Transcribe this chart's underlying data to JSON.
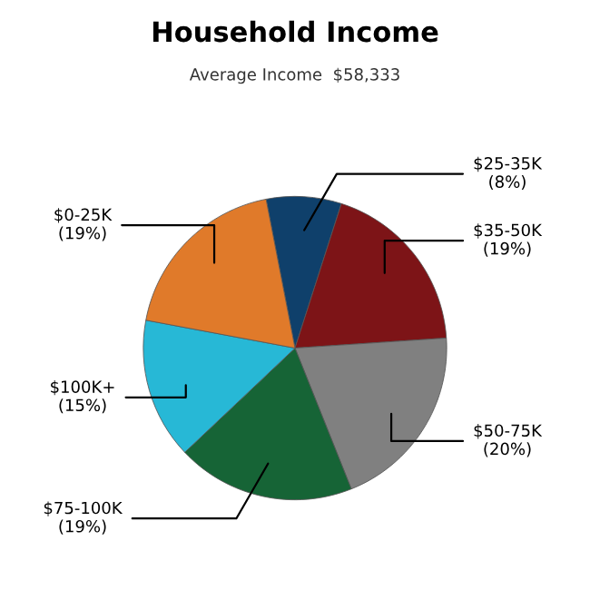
{
  "chart_data": {
    "type": "pie",
    "title": "Household Income",
    "subtitle": "Average Income  $58,333",
    "categories": [
      "$25-35K",
      "$35-50K",
      "$50-75K",
      "$75-100K",
      "$100K+",
      "$0-25K"
    ],
    "values": [
      8,
      19,
      20,
      19,
      15,
      19
    ],
    "value_labels": [
      "(8%)",
      "(19%)",
      "(20%)",
      "(19%)",
      "(15%)",
      "(19%)"
    ],
    "colors": [
      "#0f406b",
      "#7d1417",
      "#808080",
      "#166436",
      "#27b8d6",
      "#e07a2a"
    ],
    "legend": false
  }
}
